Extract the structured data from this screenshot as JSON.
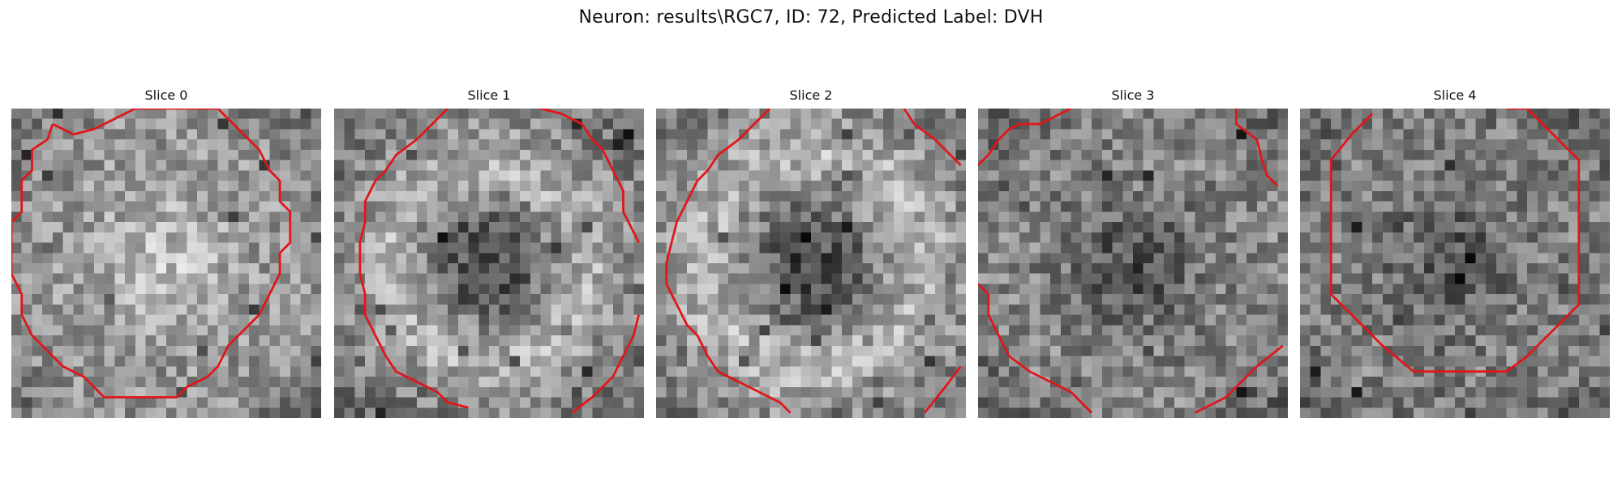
{
  "figure": {
    "title": "Neuron: results\\RGC7, ID: 72, Predicted Label: DVH"
  },
  "colors": {
    "contour": "#e0161b",
    "background": "#ffffff"
  },
  "panels": [
    {
      "title": "Slice 0"
    },
    {
      "title": "Slice 1"
    },
    {
      "title": "Slice 2"
    },
    {
      "title": "Slice 3"
    },
    {
      "title": "Slice 4"
    }
  ]
}
